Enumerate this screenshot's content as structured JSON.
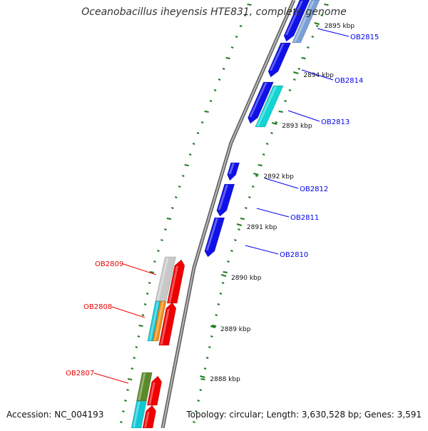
{
  "header": {
    "title": "Oceanobacillus iheyensis HTE831, complete genome"
  },
  "footer": {
    "accession": "Accession: NC_004193",
    "summary": "Topology: circular; Length: 3,630,528 bp; Genes: 3,591"
  },
  "colors": {
    "backbone": "#8a8a8a",
    "tick": "#1f7a1f",
    "forward_label": "#0000ee",
    "reverse_label": "#ee0000",
    "kbp_text": "#111111"
  },
  "scale": {
    "unit": "kbp",
    "labels": [
      "2888 kbp",
      "2889 kbp",
      "2890 kbp",
      "2891 kbp",
      "2892 kbp",
      "2893 kbp",
      "2894 kbp",
      "2895 kbp"
    ]
  },
  "genes": {
    "forward": [
      {
        "name": "OB2810",
        "color": "#0000ee"
      },
      {
        "name": "OB2811",
        "color": "#0000ee"
      },
      {
        "name": "OB2812",
        "color": "#0000ee"
      },
      {
        "name": "OB2813",
        "color": "#0000ee"
      },
      {
        "name": "OB2814",
        "color": "#0000ee"
      },
      {
        "name": "OB2815",
        "color": "#0000ee"
      }
    ],
    "reverse": [
      {
        "name": "OB2807",
        "color": "#ee0000"
      },
      {
        "name": "OB2808",
        "color": "#ee0000"
      },
      {
        "name": "OB2809",
        "color": "#ee0000"
      }
    ]
  }
}
